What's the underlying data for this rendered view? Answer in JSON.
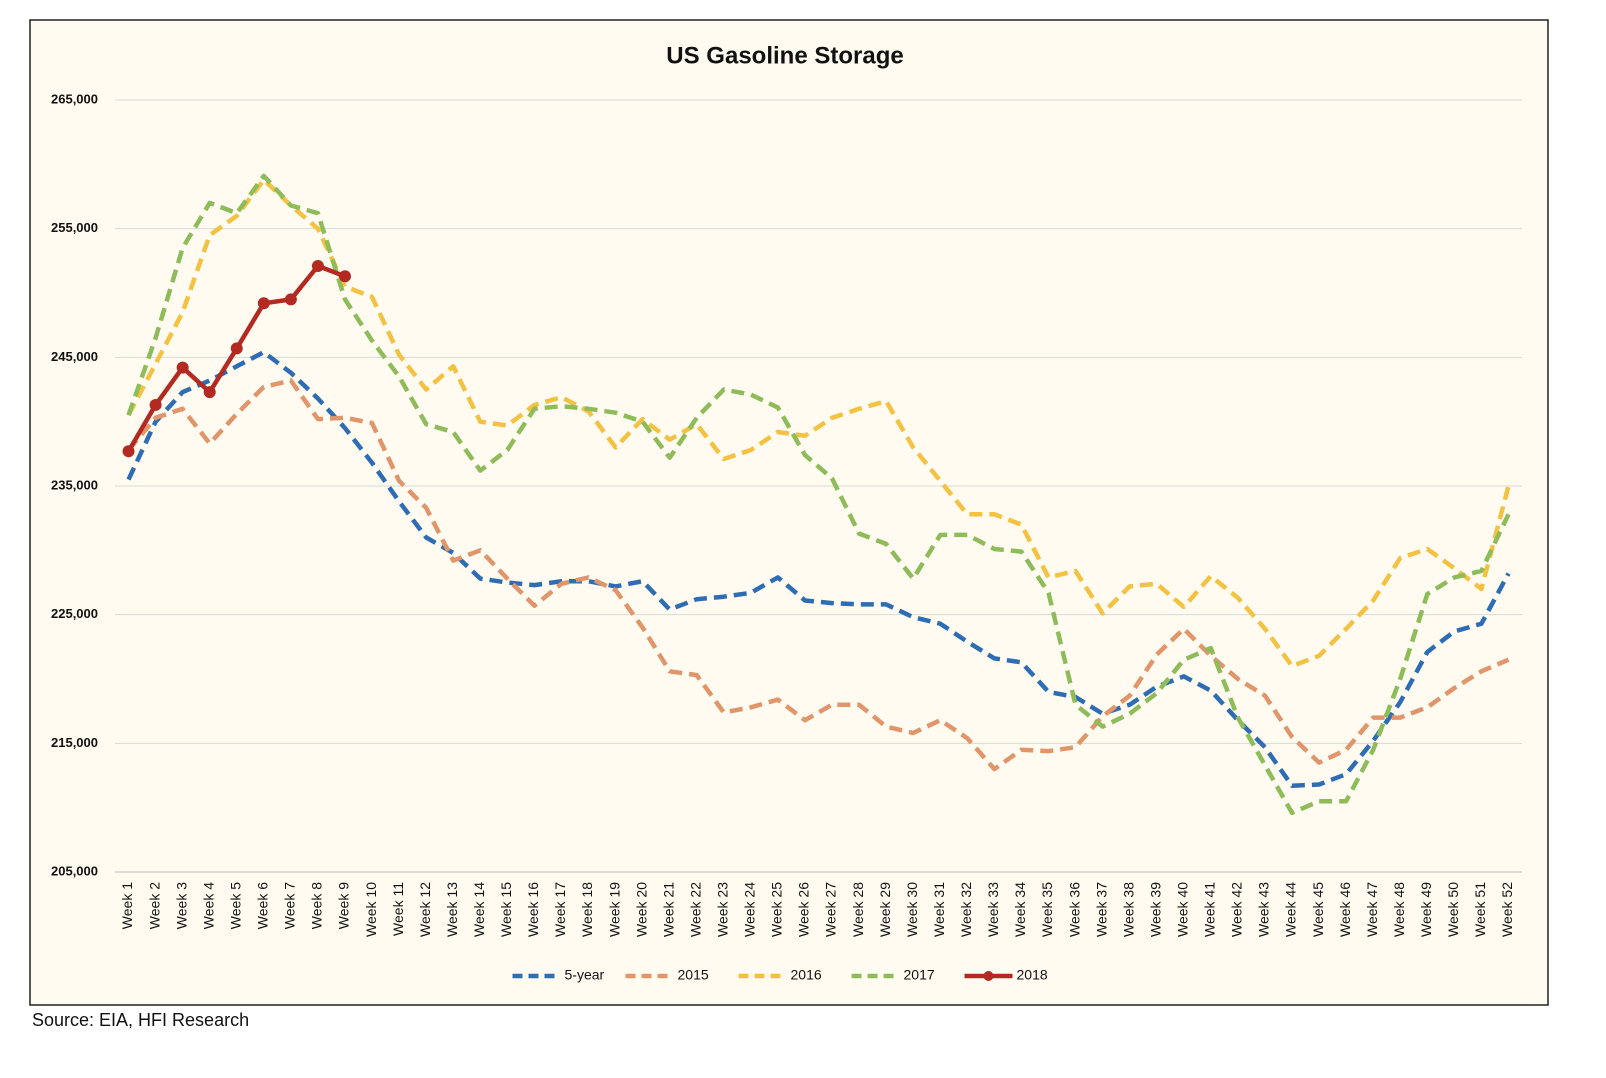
{
  "chart_data": {
    "type": "line",
    "title": "US Gasoline Storage",
    "source": "Source: EIA, HFI Research",
    "categories": [
      "Week 1",
      "Week 2",
      "Week 3",
      "Week 4",
      "Week 5",
      "Week 6",
      "Week 7",
      "Week 8",
      "Week 9",
      "Week 10",
      "Week 11",
      "Week 12",
      "Week 13",
      "Week 14",
      "Week 15",
      "Week 16",
      "Week 17",
      "Week 18",
      "Week 19",
      "Week 20",
      "Week 21",
      "Week 22",
      "Week 23",
      "Week 24",
      "Week 25",
      "Week 26",
      "Week 27",
      "Week 28",
      "Week 29",
      "Week 30",
      "Week 31",
      "Week 32",
      "Week 33",
      "Week 34",
      "Week 35",
      "Week 36",
      "Week 37",
      "Week 38",
      "Week 39",
      "Week 40",
      "Week 41",
      "Week 42",
      "Week 43",
      "Week 44",
      "Week 45",
      "Week 46",
      "Week 47",
      "Week 48",
      "Week 49",
      "Week 50",
      "Week 51",
      "Week 52"
    ],
    "ylim": [
      205000,
      265000
    ],
    "yticks": [
      {
        "value": 205000,
        "label": "205,000"
      },
      {
        "value": 215000,
        "label": "215,000"
      },
      {
        "value": 225000,
        "label": "225,000"
      },
      {
        "value": 235000,
        "label": "235,000"
      },
      {
        "value": 245000,
        "label": "245,000"
      },
      {
        "value": 255000,
        "label": "255,000"
      },
      {
        "value": 265000,
        "label": "265,000"
      }
    ],
    "grid": true,
    "legend": "bottom",
    "series": [
      {
        "name": "5-year",
        "color": "#2e6db4",
        "dashed": true,
        "values": [
          235500,
          240000,
          242300,
          243200,
          244300,
          245400,
          243800,
          241800,
          239500,
          236800,
          233800,
          231000,
          229800,
          227800,
          227500,
          227300,
          227600,
          227600,
          227200,
          227600,
          225400,
          226200,
          226400,
          226700,
          227900,
          226100,
          225900,
          225800,
          225800,
          224800,
          224300,
          222900,
          221600,
          221300,
          219000,
          218600,
          217300,
          218000,
          219400,
          220200,
          219100,
          216800,
          214700,
          211700,
          211800,
          212600,
          215200,
          218200,
          222100,
          223700,
          224300,
          228200
        ]
      },
      {
        "name": "2015",
        "color": "#e0956a",
        "dashed": true,
        "values": [
          237800,
          240300,
          241000,
          238300,
          240600,
          242700,
          243200,
          240200,
          240300,
          239900,
          235400,
          233300,
          229200,
          230000,
          227800,
          225700,
          227400,
          227900,
          226900,
          224000,
          220600,
          220300,
          217400,
          217800,
          218400,
          216800,
          218000,
          218000,
          216300,
          215800,
          216800,
          215400,
          213000,
          214500,
          214400,
          214700,
          217100,
          218700,
          221900,
          223900,
          221800,
          220000,
          218700,
          215500,
          213500,
          214500,
          217000,
          217000,
          217800,
          219300,
          220600,
          221500
        ]
      },
      {
        "name": "2016",
        "color": "#f4c242",
        "dashed": true,
        "values": [
          240500,
          244500,
          248500,
          254500,
          256000,
          258800,
          256800,
          255000,
          250500,
          249700,
          245200,
          242500,
          244300,
          240000,
          239700,
          241300,
          241900,
          240800,
          238000,
          240200,
          238600,
          239800,
          237100,
          237800,
          239200,
          238900,
          240300,
          241000,
          241600,
          238000,
          235400,
          232800,
          232800,
          232000,
          227900,
          228400,
          225100,
          227200,
          227400,
          225600,
          228000,
          226300,
          223900,
          221000,
          221800,
          223900,
          226100,
          229400,
          230100,
          228600,
          227000,
          235000
        ]
      },
      {
        "name": "2017",
        "color": "#8fbc5a",
        "dashed": true,
        "values": [
          240500,
          246500,
          253500,
          257000,
          256200,
          259100,
          256800,
          256200,
          249500,
          246300,
          243500,
          239800,
          239200,
          236200,
          237800,
          241000,
          241200,
          241000,
          240700,
          240000,
          237200,
          240300,
          242500,
          242100,
          241100,
          237400,
          235600,
          231300,
          230500,
          227800,
          231200,
          231200,
          230100,
          229900,
          226700,
          218000,
          216300,
          217300,
          218900,
          221500,
          222400,
          217000,
          213300,
          209600,
          210500,
          210500,
          214500,
          220000,
          226600,
          227900,
          228400,
          232800
        ]
      },
      {
        "name": "2018",
        "color": "#b22a22",
        "dashed": false,
        "markers": true,
        "values": [
          237700,
          241300,
          244200,
          242300,
          245700,
          249200,
          249500,
          252100,
          251300,
          null,
          null,
          null,
          null,
          null,
          null,
          null,
          null,
          null,
          null,
          null,
          null,
          null,
          null,
          null,
          null,
          null,
          null,
          null,
          null,
          null,
          null,
          null,
          null,
          null,
          null,
          null,
          null,
          null,
          null,
          null,
          null,
          null,
          null,
          null,
          null,
          null,
          null,
          null,
          null,
          null,
          null,
          null
        ]
      }
    ]
  }
}
